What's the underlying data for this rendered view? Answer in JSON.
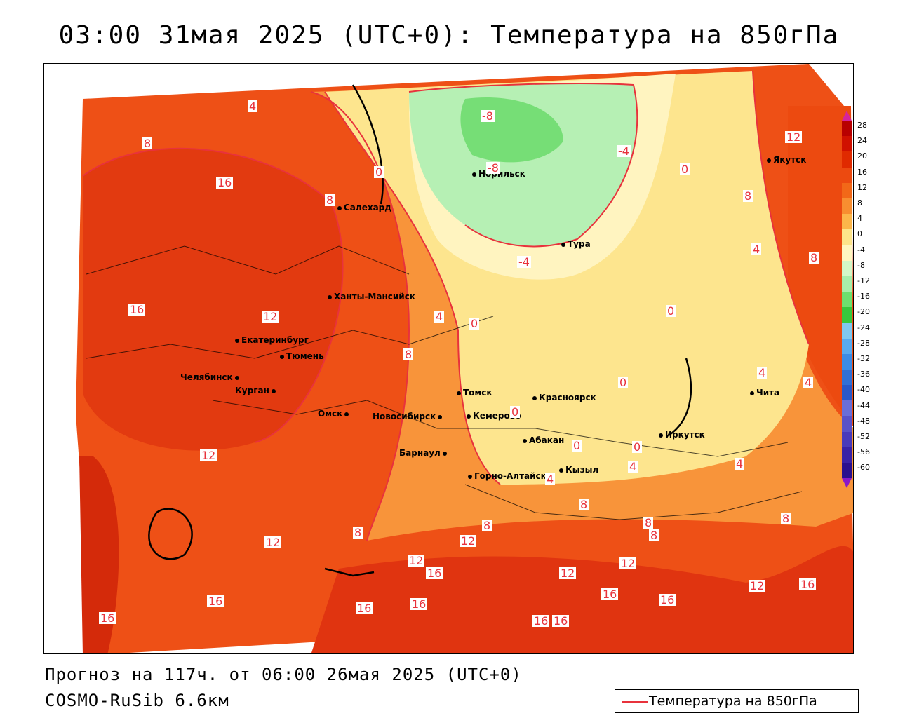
{
  "header": {
    "title": "03:00 31мая 2025 (UTC+0): Температура на 850гПа"
  },
  "map": {
    "cities": [
      {
        "name": "Норильск"
      },
      {
        "name": "Якутск"
      },
      {
        "name": "Салехард"
      },
      {
        "name": "Тура"
      },
      {
        "name": "Ханты-Мансийск"
      },
      {
        "name": "Екатеринбург"
      },
      {
        "name": "Тюмень"
      },
      {
        "name": "Челябинск"
      },
      {
        "name": "Курган"
      },
      {
        "name": "Омск"
      },
      {
        "name": "Новосибирск"
      },
      {
        "name": "Томск"
      },
      {
        "name": "Красноярск"
      },
      {
        "name": "Кемерово"
      },
      {
        "name": "Абакан"
      },
      {
        "name": "Иркутск"
      },
      {
        "name": "Чита"
      },
      {
        "name": "Барнаул"
      },
      {
        "name": "Горно-Алтайск"
      },
      {
        "name": "Кызыл"
      }
    ],
    "contour_labels": [
      "4",
      "8",
      "16",
      "0",
      "8",
      "-8",
      "-8",
      "-4",
      "0",
      "12",
      "8",
      "-4",
      "4",
      "8",
      "16",
      "12",
      "4",
      "0",
      "0",
      "8",
      "0",
      "4",
      "4",
      "0",
      "0",
      "4",
      "0",
      "4",
      "4",
      "12",
      "8",
      "8",
      "8",
      "8",
      "8",
      "12",
      "12",
      "12",
      "16",
      "16",
      "16",
      "16",
      "16",
      "16",
      "12",
      "16",
      "16",
      "12",
      "12",
      "16",
      "16",
      "8"
    ]
  },
  "colorbar": {
    "labels": [
      "28",
      "24",
      "20",
      "16",
      "12",
      "8",
      "4",
      "0",
      "-4",
      "-8",
      "-12",
      "-16",
      "-20",
      "-24",
      "-28",
      "-32",
      "-36",
      "-40",
      "-44",
      "-48",
      "-52",
      "-56",
      "-60"
    ],
    "colors": [
      "#b80000",
      "#d01000",
      "#e02a00",
      "#ec4a10",
      "#f26818",
      "#f88e30",
      "#fcb64a",
      "#fde48a",
      "#fff6c0",
      "#d4f7c8",
      "#a8eeaa",
      "#6ee06e",
      "#38c83c",
      "#80c8f0",
      "#58aaf0",
      "#3c8ce6",
      "#3270d6",
      "#2a58c8",
      "#6a6ed8",
      "#5a52c8",
      "#4a3aba",
      "#3a22a6",
      "#2a108e"
    ]
  },
  "footer": {
    "forecast": "Прогноз на 117ч. от 06:00 26мая 2025 (UTC+0)",
    "model": "COSMO-RuSib 6.6км",
    "legend_label": "Температура на 850гПа"
  }
}
